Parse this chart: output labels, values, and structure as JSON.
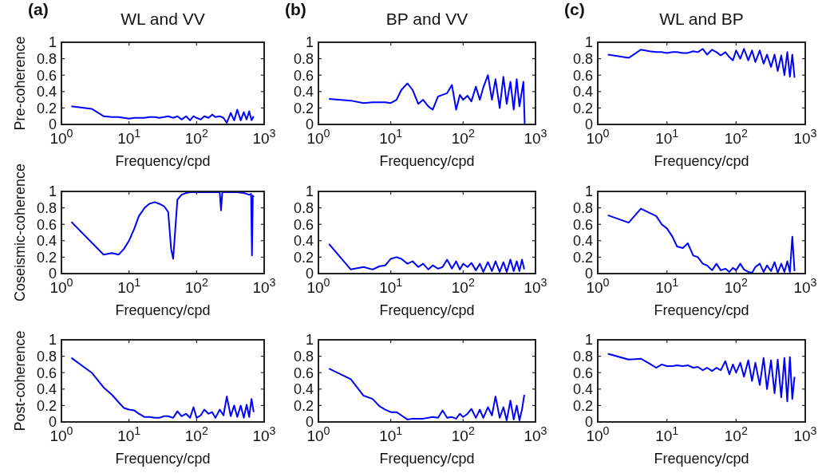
{
  "chart_data": [
    {
      "type": "line",
      "title": "WL and VV",
      "annotations": [
        "(a)"
      ],
      "xlabel": "Frequency/cpd",
      "ylabel": "Pre-coherence",
      "log": "x",
      "xlim": [
        1,
        1000
      ],
      "xticks": [
        {
          "value": 1,
          "label": "10$^{0}$"
        },
        {
          "value": 10,
          "label": "10$^{1}$"
        },
        {
          "value": 100,
          "label": "10$^{2}$"
        },
        {
          "value": 1000,
          "label": "10$^{3}$"
        }
      ],
      "ylim": [
        0,
        1
      ],
      "yticks": [
        0,
        0.2,
        0.4,
        0.6,
        0.8,
        1
      ],
      "x": [
        1.4,
        2.8,
        4.2,
        5.6,
        7,
        8.4,
        10,
        12,
        14,
        17,
        20,
        24,
        28,
        33,
        38,
        45,
        52,
        60,
        70,
        80,
        90,
        100,
        115,
        130,
        150,
        170,
        190,
        220,
        250,
        280,
        320,
        360,
        400,
        450,
        500,
        550,
        600,
        650,
        700
      ],
      "series": [
        {
          "color": "#0000ff",
          "values": [
            0.22,
            0.19,
            0.1,
            0.09,
            0.09,
            0.08,
            0.07,
            0.08,
            0.08,
            0.08,
            0.09,
            0.09,
            0.08,
            0.09,
            0.1,
            0.08,
            0.1,
            0.06,
            0.1,
            0.05,
            0.1,
            0.08,
            0.06,
            0.1,
            0.08,
            0.12,
            0.09,
            0.1,
            0.08,
            0.02,
            0.14,
            0.05,
            0.18,
            0.05,
            0.15,
            0.06,
            0.16,
            0.05,
            0.1
          ]
        }
      ]
    },
    {
      "type": "line",
      "title": "BP and VV",
      "annotations": [
        "(b)"
      ],
      "xlabel": "Frequency/cpd",
      "log": "x",
      "xlim": [
        1,
        1000
      ],
      "xticks": [
        {
          "value": 1,
          "label": "10$^{0}$"
        },
        {
          "value": 10,
          "label": "10$^{1}$"
        },
        {
          "value": 100,
          "label": "10$^{2}$"
        },
        {
          "value": 1000,
          "label": "10$^{3}$"
        }
      ],
      "ylim": [
        0,
        1
      ],
      "yticks": [
        0,
        0.2,
        0.4,
        0.6,
        0.8,
        1
      ],
      "x": [
        1.4,
        2.8,
        4.2,
        5.6,
        7,
        8.4,
        10,
        12,
        14,
        17,
        20,
        24,
        28,
        33,
        38,
        45,
        52,
        60,
        70,
        80,
        90,
        100,
        115,
        130,
        150,
        170,
        190,
        220,
        250,
        280,
        320,
        360,
        400,
        450,
        500,
        550,
        600,
        680,
        710
      ],
      "series": [
        {
          "color": "#0000ff",
          "values": [
            0.31,
            0.29,
            0.26,
            0.27,
            0.27,
            0.27,
            0.26,
            0.3,
            0.42,
            0.5,
            0.42,
            0.25,
            0.3,
            0.22,
            0.18,
            0.34,
            0.36,
            0.38,
            0.48,
            0.18,
            0.36,
            0.3,
            0.35,
            0.28,
            0.46,
            0.3,
            0.45,
            0.6,
            0.3,
            0.55,
            0.2,
            0.58,
            0.25,
            0.52,
            0.18,
            0.55,
            0.22,
            0.52,
            0
          ]
        }
      ]
    },
    {
      "type": "line",
      "title": "WL and BP",
      "annotations": [
        "(c)"
      ],
      "xlabel": "Frequency/cpd",
      "log": "x",
      "xlim": [
        1,
        1000
      ],
      "xticks": [
        {
          "value": 1,
          "label": "10$^{0}$"
        },
        {
          "value": 10,
          "label": "10$^{1}$"
        },
        {
          "value": 100,
          "label": "10$^{2}$"
        },
        {
          "value": 1000,
          "label": "10$^{3}$"
        }
      ],
      "ylim": [
        0,
        1
      ],
      "yticks": [
        0,
        0.2,
        0.4,
        0.6,
        0.8,
        1
      ],
      "x": [
        1.4,
        2.8,
        4.2,
        5.6,
        7,
        8.4,
        10,
        12,
        14,
        17,
        20,
        24,
        28,
        33,
        38,
        45,
        52,
        60,
        70,
        80,
        90,
        100,
        115,
        130,
        150,
        170,
        190,
        220,
        250,
        280,
        320,
        360,
        400,
        450,
        500,
        550,
        600,
        650,
        700
      ],
      "series": [
        {
          "color": "#0000ff",
          "values": [
            0.85,
            0.81,
            0.91,
            0.89,
            0.88,
            0.88,
            0.87,
            0.88,
            0.88,
            0.87,
            0.87,
            0.89,
            0.88,
            0.92,
            0.85,
            0.91,
            0.88,
            0.84,
            0.88,
            0.82,
            0.78,
            0.9,
            0.8,
            0.92,
            0.78,
            0.9,
            0.76,
            0.9,
            0.74,
            0.85,
            0.7,
            0.85,
            0.65,
            0.84,
            0.6,
            0.88,
            0.58,
            0.85,
            0.57
          ]
        }
      ]
    },
    {
      "type": "line",
      "xlabel": "Frequency/cpd",
      "ylabel": "Coseismic-coherence",
      "log": "x",
      "xlim": [
        1,
        1000
      ],
      "xticks": [
        {
          "value": 1,
          "label": "10$^{0}$"
        },
        {
          "value": 10,
          "label": "10$^{1}$"
        },
        {
          "value": 100,
          "label": "10$^{2}$"
        },
        {
          "value": 1000,
          "label": "10$^{3}$"
        }
      ],
      "ylim": [
        0,
        1
      ],
      "yticks": [
        0,
        0.2,
        0.4,
        0.6,
        0.8,
        1
      ],
      "x": [
        1.4,
        4.2,
        5.6,
        7,
        8.4,
        10,
        12,
        14,
        17,
        20,
        24,
        28,
        33,
        38,
        42,
        45,
        48,
        52,
        60,
        70,
        80,
        100,
        150,
        220,
        230,
        240,
        300,
        400,
        500,
        600,
        640,
        660,
        680,
        700
      ],
      "series": [
        {
          "color": "#0000ff",
          "values": [
            0.63,
            0.23,
            0.25,
            0.23,
            0.3,
            0.4,
            0.55,
            0.7,
            0.8,
            0.85,
            0.87,
            0.85,
            0.82,
            0.75,
            0.3,
            0.18,
            0.5,
            0.9,
            0.96,
            0.98,
            0.99,
            0.99,
            0.99,
            0.99,
            0.77,
            0.99,
            0.99,
            0.99,
            0.98,
            0.96,
            0.97,
            0.22,
            0.95,
            0.93
          ]
        }
      ]
    },
    {
      "type": "line",
      "xlabel": "Frequency/cpd",
      "log": "x",
      "xlim": [
        1,
        1000
      ],
      "xticks": [
        {
          "value": 1,
          "label": "10$^{0}$"
        },
        {
          "value": 10,
          "label": "10$^{1}$"
        },
        {
          "value": 100,
          "label": "10$^{2}$"
        },
        {
          "value": 1000,
          "label": "10$^{3}$"
        }
      ],
      "ylim": [
        0,
        1
      ],
      "yticks": [
        0,
        0.2,
        0.4,
        0.6,
        0.8,
        1
      ],
      "x": [
        1.4,
        2.8,
        4.2,
        5.6,
        7,
        8.4,
        10,
        12,
        14,
        17,
        20,
        24,
        28,
        33,
        38,
        45,
        52,
        60,
        70,
        80,
        90,
        100,
        115,
        130,
        150,
        170,
        190,
        220,
        250,
        280,
        320,
        360,
        400,
        450,
        500,
        550,
        600,
        650,
        700
      ],
      "series": [
        {
          "color": "#0000ff",
          "values": [
            0.36,
            0.05,
            0.08,
            0.05,
            0.09,
            0.1,
            0.18,
            0.2,
            0.18,
            0.12,
            0.15,
            0.08,
            0.12,
            0.05,
            0.1,
            0.06,
            0.08,
            0.17,
            0.06,
            0.15,
            0.05,
            0.12,
            0.08,
            0.13,
            0.04,
            0.12,
            0.02,
            0.14,
            0.03,
            0.15,
            0.02,
            0.14,
            0.02,
            0.17,
            0.03,
            0.15,
            0.03,
            0.17,
            0.05
          ]
        }
      ]
    },
    {
      "type": "line",
      "xlabel": "Frequency/cpd",
      "log": "x",
      "xlim": [
        1,
        1000
      ],
      "xticks": [
        {
          "value": 1,
          "label": "10$^{0}$"
        },
        {
          "value": 10,
          "label": "10$^{1}$"
        },
        {
          "value": 100,
          "label": "10$^{2}$"
        },
        {
          "value": 1000,
          "label": "10$^{3}$"
        }
      ],
      "ylim": [
        0,
        1
      ],
      "yticks": [
        0,
        0.2,
        0.4,
        0.6,
        0.8,
        1
      ],
      "x": [
        1.4,
        2.8,
        4.2,
        5.6,
        7,
        8.4,
        10,
        12,
        14,
        17,
        20,
        24,
        28,
        33,
        38,
        45,
        52,
        60,
        70,
        80,
        90,
        100,
        115,
        130,
        150,
        170,
        190,
        220,
        250,
        280,
        320,
        360,
        400,
        450,
        500,
        550,
        600,
        650,
        700
      ],
      "series": [
        {
          "color": "#0000ff",
          "values": [
            0.71,
            0.62,
            0.79,
            0.74,
            0.7,
            0.6,
            0.55,
            0.45,
            0.33,
            0.31,
            0.37,
            0.22,
            0.2,
            0.12,
            0.1,
            0.04,
            0.12,
            0.04,
            0.06,
            0.02,
            0.07,
            0.04,
            0.12,
            0.05,
            0.02,
            0.01,
            0.08,
            0.12,
            0.02,
            0.1,
            0.03,
            0.14,
            0.01,
            0.12,
            0.02,
            0.15,
            0.02,
            0.45,
            0.03
          ]
        }
      ]
    },
    {
      "type": "line",
      "xlabel": "Frequency/cpd",
      "ylabel": "Post-coherence",
      "log": "x",
      "xlim": [
        1,
        1000
      ],
      "xticks": [
        {
          "value": 1,
          "label": "10$^{0}$"
        },
        {
          "value": 10,
          "label": "10$^{1}$"
        },
        {
          "value": 100,
          "label": "10$^{2}$"
        },
        {
          "value": 1000,
          "label": "10$^{3}$"
        }
      ],
      "ylim": [
        0,
        1
      ],
      "yticks": [
        0,
        0.2,
        0.4,
        0.6,
        0.8,
        1
      ],
      "x": [
        1.4,
        2.8,
        4.2,
        5.6,
        7,
        8.4,
        10,
        12,
        14,
        17,
        20,
        24,
        28,
        33,
        38,
        45,
        52,
        60,
        70,
        80,
        90,
        100,
        115,
        130,
        150,
        170,
        190,
        220,
        250,
        280,
        320,
        360,
        400,
        450,
        500,
        550,
        600,
        650,
        700
      ],
      "series": [
        {
          "color": "#0000ff",
          "values": [
            0.78,
            0.6,
            0.42,
            0.33,
            0.24,
            0.17,
            0.15,
            0.14,
            0.1,
            0.06,
            0.06,
            0.05,
            0.05,
            0.07,
            0.07,
            0.05,
            0.13,
            0.07,
            0.1,
            0.05,
            0.18,
            0.05,
            0.08,
            0.15,
            0.1,
            0.12,
            0.05,
            0.15,
            0.08,
            0.31,
            0.07,
            0.2,
            0.06,
            0.2,
            0.05,
            0.21,
            0.06,
            0.28,
            0.12
          ]
        }
      ]
    },
    {
      "type": "line",
      "xlabel": "Frequency/cpd",
      "log": "x",
      "xlim": [
        1,
        1000
      ],
      "xticks": [
        {
          "value": 1,
          "label": "10$^{0}$"
        },
        {
          "value": 10,
          "label": "10$^{1}$"
        },
        {
          "value": 100,
          "label": "10$^{2}$"
        },
        {
          "value": 1000,
          "label": "10$^{3}$"
        }
      ],
      "ylim": [
        0,
        1
      ],
      "yticks": [
        0,
        0.2,
        0.4,
        0.6,
        0.8,
        1
      ],
      "x": [
        1.4,
        2.8,
        4.2,
        5.6,
        7,
        8.4,
        10,
        12,
        14,
        17,
        20,
        24,
        28,
        33,
        38,
        45,
        52,
        60,
        70,
        80,
        90,
        100,
        115,
        130,
        150,
        170,
        190,
        220,
        250,
        280,
        320,
        360,
        400,
        450,
        500,
        550,
        600,
        650,
        700
      ],
      "series": [
        {
          "color": "#0000ff",
          "values": [
            0.65,
            0.52,
            0.32,
            0.28,
            0.19,
            0.15,
            0.12,
            0.12,
            0.08,
            0.03,
            0.04,
            0.04,
            0.04,
            0.05,
            0.06,
            0.05,
            0.14,
            0.05,
            0.06,
            0.04,
            0.1,
            0.06,
            0.1,
            0.16,
            0.05,
            0.15,
            0.05,
            0.18,
            0.08,
            0.31,
            0.05,
            0.18,
            0.02,
            0.26,
            0.03,
            0.2,
            0.02,
            0.15,
            0.33
          ]
        }
      ]
    },
    {
      "type": "line",
      "xlabel": "Frequency/cpd",
      "log": "x",
      "xlim": [
        1,
        1000
      ],
      "xticks": [
        {
          "value": 1,
          "label": "10$^{0}$"
        },
        {
          "value": 10,
          "label": "10$^{1}$"
        },
        {
          "value": 100,
          "label": "10$^{2}$"
        },
        {
          "value": 1000,
          "label": "10$^{3}$"
        }
      ],
      "ylim": [
        0,
        1
      ],
      "yticks": [
        0,
        0.2,
        0.4,
        0.6,
        0.8,
        1
      ],
      "x": [
        1.4,
        2.8,
        4.2,
        5.6,
        7,
        8.4,
        10,
        12,
        14,
        17,
        20,
        24,
        28,
        33,
        38,
        45,
        52,
        60,
        70,
        80,
        90,
        100,
        115,
        130,
        150,
        170,
        190,
        220,
        250,
        280,
        320,
        360,
        400,
        450,
        500,
        550,
        600,
        650,
        700
      ],
      "series": [
        {
          "color": "#0000ff",
          "values": [
            0.83,
            0.76,
            0.77,
            0.71,
            0.66,
            0.7,
            0.68,
            0.68,
            0.69,
            0.68,
            0.69,
            0.66,
            0.67,
            0.63,
            0.66,
            0.62,
            0.66,
            0.63,
            0.74,
            0.58,
            0.7,
            0.6,
            0.72,
            0.55,
            0.75,
            0.5,
            0.72,
            0.45,
            0.78,
            0.4,
            0.75,
            0.35,
            0.76,
            0.3,
            0.78,
            0.25,
            0.79,
            0.28,
            0.55
          ]
        }
      ]
    }
  ]
}
